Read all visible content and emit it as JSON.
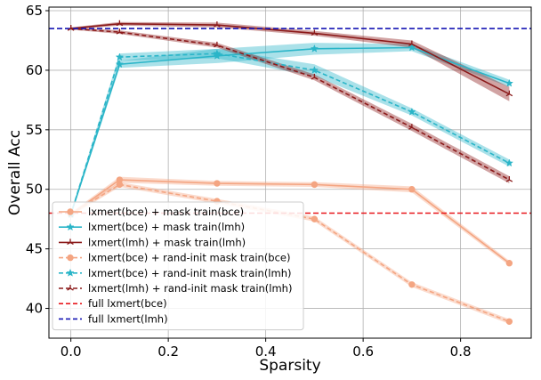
{
  "chart_data": {
    "type": "line",
    "xlabel": "Sparsity",
    "ylabel": "Overall Acc",
    "xlim": [
      -0.045,
      0.945
    ],
    "ylim": [
      37.5,
      65.3
    ],
    "xticks": [
      0.0,
      0.2,
      0.4,
      0.6,
      0.8
    ],
    "xtick_labels": [
      "0.0",
      "0.2",
      "0.4",
      "0.6",
      "0.8"
    ],
    "yticks": [
      40,
      45,
      50,
      55,
      60,
      65
    ],
    "ytick_labels": [
      "40",
      "45",
      "50",
      "55",
      "60",
      "65"
    ],
    "grid": true,
    "legend_position": "lower-left",
    "series": [
      {
        "name": "lxmert(bce) + mask train(bce)",
        "color": "#f4a582",
        "linestyle": "solid",
        "marker": "circle",
        "x": [
          0.0,
          0.1,
          0.3,
          0.5,
          0.7,
          0.9
        ],
        "y": [
          47.9,
          50.8,
          50.5,
          50.4,
          50.0,
          43.8
        ],
        "band": [
          0.15,
          0.25,
          0.2,
          0.2,
          0.25,
          0.2
        ]
      },
      {
        "name": "lxmert(bce) + mask train(lmh)",
        "color": "#2ab5c8",
        "linestyle": "solid",
        "marker": "star",
        "x": [
          0.0,
          0.1,
          0.3,
          0.5,
          0.7,
          0.9
        ],
        "y": [
          47.9,
          60.5,
          61.2,
          61.8,
          61.9,
          58.9
        ],
        "band": [
          0.15,
          0.3,
          0.6,
          0.5,
          0.3,
          0.3
        ]
      },
      {
        "name": "lxmert(lmh) + mask train(lmh)",
        "color": "#8b1a1a",
        "linestyle": "solid",
        "marker": "tri",
        "x": [
          0.0,
          0.1,
          0.3,
          0.5,
          0.7,
          0.9
        ],
        "y": [
          63.5,
          63.9,
          63.8,
          63.1,
          62.2,
          58.0
        ],
        "band": [
          0.1,
          0.15,
          0.2,
          0.2,
          0.3,
          0.6
        ]
      },
      {
        "name": "lxmert(bce) + rand-init mask train(bce)",
        "color": "#f4a582",
        "linestyle": "dashed",
        "marker": "circle",
        "x": [
          0.0,
          0.1,
          0.3,
          0.5,
          0.7,
          0.9
        ],
        "y": [
          47.9,
          50.4,
          49.0,
          47.5,
          42.0,
          38.9
        ],
        "band": [
          0.15,
          0.2,
          0.2,
          0.2,
          0.2,
          0.2
        ]
      },
      {
        "name": "lxmert(bce) + rand-init mask train(lmh)",
        "color": "#2ab5c8",
        "linestyle": "dashed",
        "marker": "star",
        "x": [
          0.0,
          0.1,
          0.3,
          0.5,
          0.7,
          0.9
        ],
        "y": [
          47.9,
          61.1,
          61.4,
          60.0,
          56.5,
          52.2
        ],
        "band": [
          0.15,
          0.3,
          0.4,
          0.5,
          0.3,
          0.3
        ]
      },
      {
        "name": "lxmert(lmh) + rand-init mask train(lmh)",
        "color": "#8b1a1a",
        "linestyle": "dashed",
        "marker": "tri",
        "x": [
          0.0,
          0.1,
          0.3,
          0.5,
          0.7,
          0.9
        ],
        "y": [
          63.5,
          63.2,
          62.1,
          59.4,
          55.2,
          50.8
        ],
        "band": [
          0.1,
          0.15,
          0.2,
          0.25,
          0.3,
          0.3
        ]
      }
    ],
    "reference_lines": [
      {
        "name": "full lxmert(bce)",
        "color": "#e8181d",
        "linestyle": "dashed",
        "y": 48.0
      },
      {
        "name": "full lxmert(lmh)",
        "color": "#1414b4",
        "linestyle": "dashed",
        "y": 63.5
      }
    ]
  }
}
